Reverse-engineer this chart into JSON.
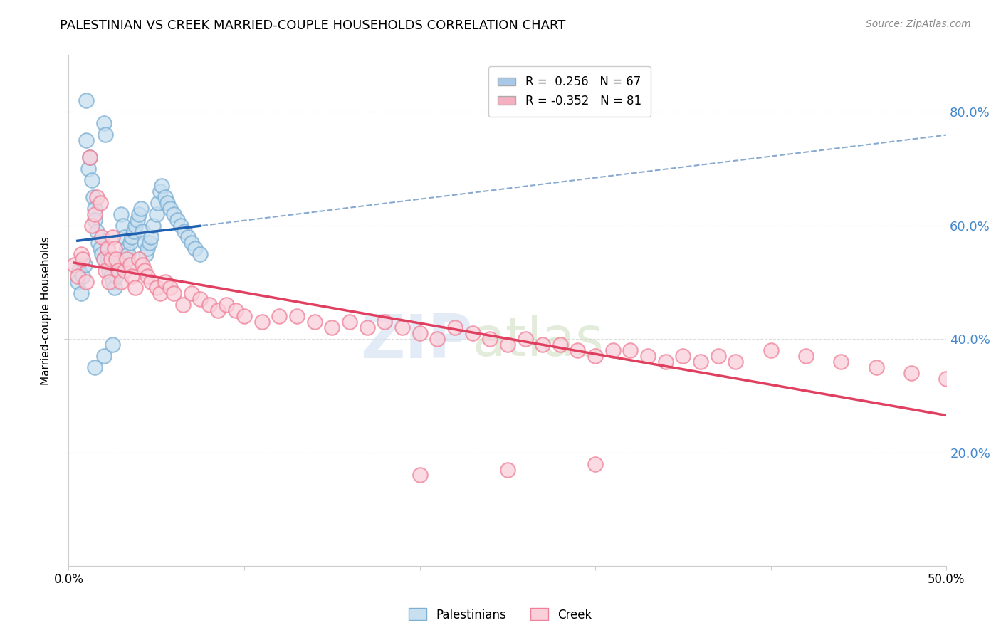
{
  "title": "PALESTINIAN VS CREEK MARRIED-COUPLE HOUSEHOLDS CORRELATION CHART",
  "source": "Source: ZipAtlas.com",
  "ylabel": "Married-couple Households",
  "xlim": [
    0.0,
    0.5
  ],
  "ylim": [
    0.0,
    0.9
  ],
  "yticks": [
    0.2,
    0.4,
    0.6,
    0.8
  ],
  "ytick_labels": [
    "20.0%",
    "40.0%",
    "60.0%",
    "80.0%"
  ],
  "xticks": [
    0.0,
    0.1,
    0.2,
    0.3,
    0.4,
    0.5
  ],
  "legend_entries": [
    {
      "label": "R =  0.256   N = 67",
      "color": "#a8c8e8"
    },
    {
      "label": "R = -0.352   N = 81",
      "color": "#f4b0c0"
    }
  ],
  "palestinian_fill": "#c8dff0",
  "palestinian_edge": "#7bafd4",
  "creek_fill": "#f9d0da",
  "creek_edge": "#f08098",
  "palestinian_line_color": "#2060b0",
  "creek_line_color": "#e04060",
  "dashed_line_color": "#88aad0",
  "watermark_color": "#d0dff0",
  "background_color": "#ffffff",
  "grid_color": "#dddddd",
  "right_axis_color": "#4488cc",
  "title_fontsize": 13,
  "source_fontsize": 10,
  "legend_fontsize": 12,
  "axis_label_fontsize": 11,
  "palestinians_x": [
    0.005,
    0.006,
    0.007,
    0.008,
    0.009,
    0.01,
    0.01,
    0.011,
    0.012,
    0.013,
    0.014,
    0.015,
    0.015,
    0.016,
    0.017,
    0.018,
    0.019,
    0.02,
    0.02,
    0.021,
    0.022,
    0.022,
    0.023,
    0.024,
    0.025,
    0.026,
    0.027,
    0.028,
    0.029,
    0.03,
    0.03,
    0.031,
    0.032,
    0.033,
    0.034,
    0.035,
    0.036,
    0.037,
    0.038,
    0.039,
    0.04,
    0.041,
    0.042,
    0.043,
    0.044,
    0.045,
    0.046,
    0.047,
    0.048,
    0.05,
    0.051,
    0.052,
    0.053,
    0.055,
    0.056,
    0.058,
    0.06,
    0.062,
    0.064,
    0.066,
    0.068,
    0.07,
    0.072,
    0.075,
    0.015,
    0.02,
    0.025
  ],
  "palestinians_y": [
    0.5,
    0.52,
    0.48,
    0.51,
    0.53,
    0.82,
    0.75,
    0.7,
    0.72,
    0.68,
    0.65,
    0.63,
    0.61,
    0.59,
    0.57,
    0.56,
    0.55,
    0.54,
    0.78,
    0.76,
    0.56,
    0.54,
    0.52,
    0.51,
    0.5,
    0.49,
    0.51,
    0.52,
    0.53,
    0.54,
    0.62,
    0.6,
    0.58,
    0.56,
    0.55,
    0.57,
    0.58,
    0.59,
    0.6,
    0.61,
    0.62,
    0.63,
    0.59,
    0.57,
    0.55,
    0.56,
    0.57,
    0.58,
    0.6,
    0.62,
    0.64,
    0.66,
    0.67,
    0.65,
    0.64,
    0.63,
    0.62,
    0.61,
    0.6,
    0.59,
    0.58,
    0.57,
    0.56,
    0.55,
    0.35,
    0.37,
    0.39
  ],
  "creek_x": [
    0.003,
    0.005,
    0.007,
    0.008,
    0.01,
    0.012,
    0.013,
    0.015,
    0.016,
    0.018,
    0.019,
    0.02,
    0.021,
    0.022,
    0.023,
    0.024,
    0.025,
    0.026,
    0.027,
    0.028,
    0.03,
    0.032,
    0.033,
    0.035,
    0.036,
    0.038,
    0.04,
    0.042,
    0.043,
    0.045,
    0.047,
    0.05,
    0.052,
    0.055,
    0.058,
    0.06,
    0.065,
    0.07,
    0.075,
    0.08,
    0.085,
    0.09,
    0.095,
    0.1,
    0.11,
    0.12,
    0.13,
    0.14,
    0.15,
    0.16,
    0.17,
    0.18,
    0.19,
    0.2,
    0.21,
    0.22,
    0.23,
    0.24,
    0.25,
    0.26,
    0.27,
    0.28,
    0.29,
    0.3,
    0.31,
    0.32,
    0.33,
    0.34,
    0.35,
    0.36,
    0.37,
    0.38,
    0.4,
    0.42,
    0.44,
    0.46,
    0.48,
    0.5,
    0.2,
    0.25,
    0.3
  ],
  "creek_y": [
    0.53,
    0.51,
    0.55,
    0.54,
    0.5,
    0.72,
    0.6,
    0.62,
    0.65,
    0.64,
    0.58,
    0.54,
    0.52,
    0.56,
    0.5,
    0.54,
    0.58,
    0.56,
    0.54,
    0.52,
    0.5,
    0.52,
    0.54,
    0.53,
    0.51,
    0.49,
    0.54,
    0.53,
    0.52,
    0.51,
    0.5,
    0.49,
    0.48,
    0.5,
    0.49,
    0.48,
    0.46,
    0.48,
    0.47,
    0.46,
    0.45,
    0.46,
    0.45,
    0.44,
    0.43,
    0.44,
    0.44,
    0.43,
    0.42,
    0.43,
    0.42,
    0.43,
    0.42,
    0.41,
    0.4,
    0.42,
    0.41,
    0.4,
    0.39,
    0.4,
    0.39,
    0.39,
    0.38,
    0.37,
    0.38,
    0.38,
    0.37,
    0.36,
    0.37,
    0.36,
    0.37,
    0.36,
    0.38,
    0.37,
    0.36,
    0.35,
    0.34,
    0.33,
    0.16,
    0.17,
    0.18
  ]
}
